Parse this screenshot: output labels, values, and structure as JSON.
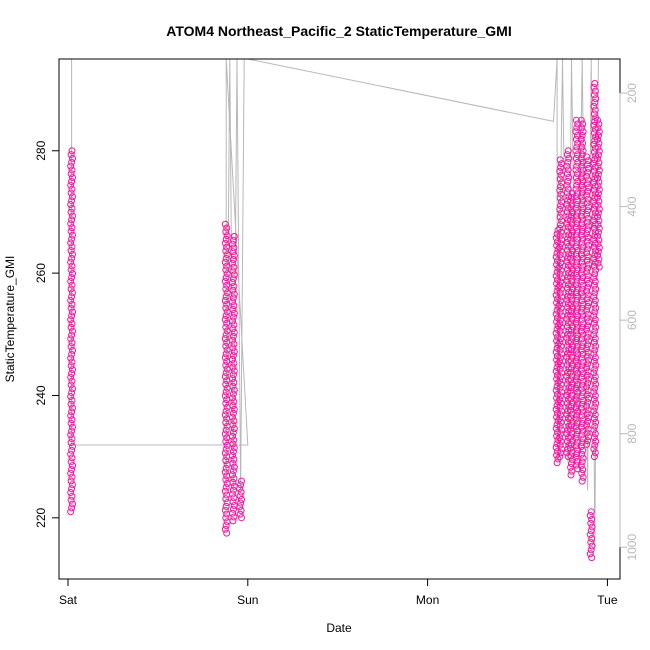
{
  "chart_data": {
    "type": "scatter",
    "title": "ATOM4 Northeast_Pacific_2 StaticTemperature_GMI",
    "xlabel": "Date",
    "ylabel": "StaticTemperature_GMI",
    "x_ticks": [
      "Sat",
      "Sun",
      "Mon",
      "Tue"
    ],
    "x_tick_values": [
      0,
      1,
      2,
      3
    ],
    "x_range_days": [
      -0.05,
      3.07
    ],
    "y_left": {
      "ticks": [
        220,
        240,
        260,
        280
      ],
      "range": [
        210,
        295
      ]
    },
    "y_right": {
      "ticks": [
        200,
        400,
        600,
        800,
        1000
      ],
      "range": [
        1056,
        140
      ],
      "color": "#b8b8b8",
      "role": "pressure trace (grey line)"
    },
    "grid": false,
    "marker": "open circle",
    "point_colors": [
      "#ff0f80",
      "#e61fb8"
    ],
    "series": [
      {
        "profiles": [
          {
            "x": 0.02,
            "y_min": 221,
            "y_max": 280
          },
          {
            "x": 0.88,
            "y_min": 217.5,
            "y_max": 268
          },
          {
            "x": 0.92,
            "y_min": 219.5,
            "y_max": 266
          },
          {
            "x": 0.96,
            "y_min": 220,
            "y_max": 226
          },
          {
            "x": 2.72,
            "y_min": 229,
            "y_max": 267
          },
          {
            "x": 2.74,
            "y_min": 230,
            "y_max": 278.5
          },
          {
            "x": 2.78,
            "y_min": 230,
            "y_max": 280
          },
          {
            "x": 2.8,
            "y_min": 227,
            "y_max": 273
          },
          {
            "x": 2.83,
            "y_min": 228,
            "y_max": 285
          },
          {
            "x": 2.86,
            "y_min": 226,
            "y_max": 285
          },
          {
            "x": 2.89,
            "y_min": 232,
            "y_max": 279
          },
          {
            "x": 2.91,
            "y_min": 213.5,
            "y_max": 221
          },
          {
            "x": 2.93,
            "y_min": 230,
            "y_max": 291
          },
          {
            "x": 2.95,
            "y_min": 261,
            "y_max": 285
          }
        ]
      }
    ],
    "pressure_trace": [
      [
        0.02,
        140
      ],
      [
        0.02,
        820
      ],
      [
        1.0,
        820
      ],
      [
        0.88,
        140
      ],
      [
        0.88,
        900
      ],
      [
        0.9,
        140
      ],
      [
        0.92,
        900
      ],
      [
        0.94,
        140
      ],
      [
        0.96,
        900
      ],
      [
        0.98,
        140
      ],
      [
        1.0,
        140
      ],
      [
        2.7,
        250
      ],
      [
        2.72,
        140
      ],
      [
        2.72,
        800
      ],
      [
        2.75,
        140
      ],
      [
        2.78,
        850
      ],
      [
        2.8,
        140
      ],
      [
        2.83,
        800
      ],
      [
        2.86,
        140
      ],
      [
        2.89,
        900
      ],
      [
        2.91,
        140
      ],
      [
        2.93,
        1000
      ],
      [
        2.95,
        140
      ]
    ]
  }
}
